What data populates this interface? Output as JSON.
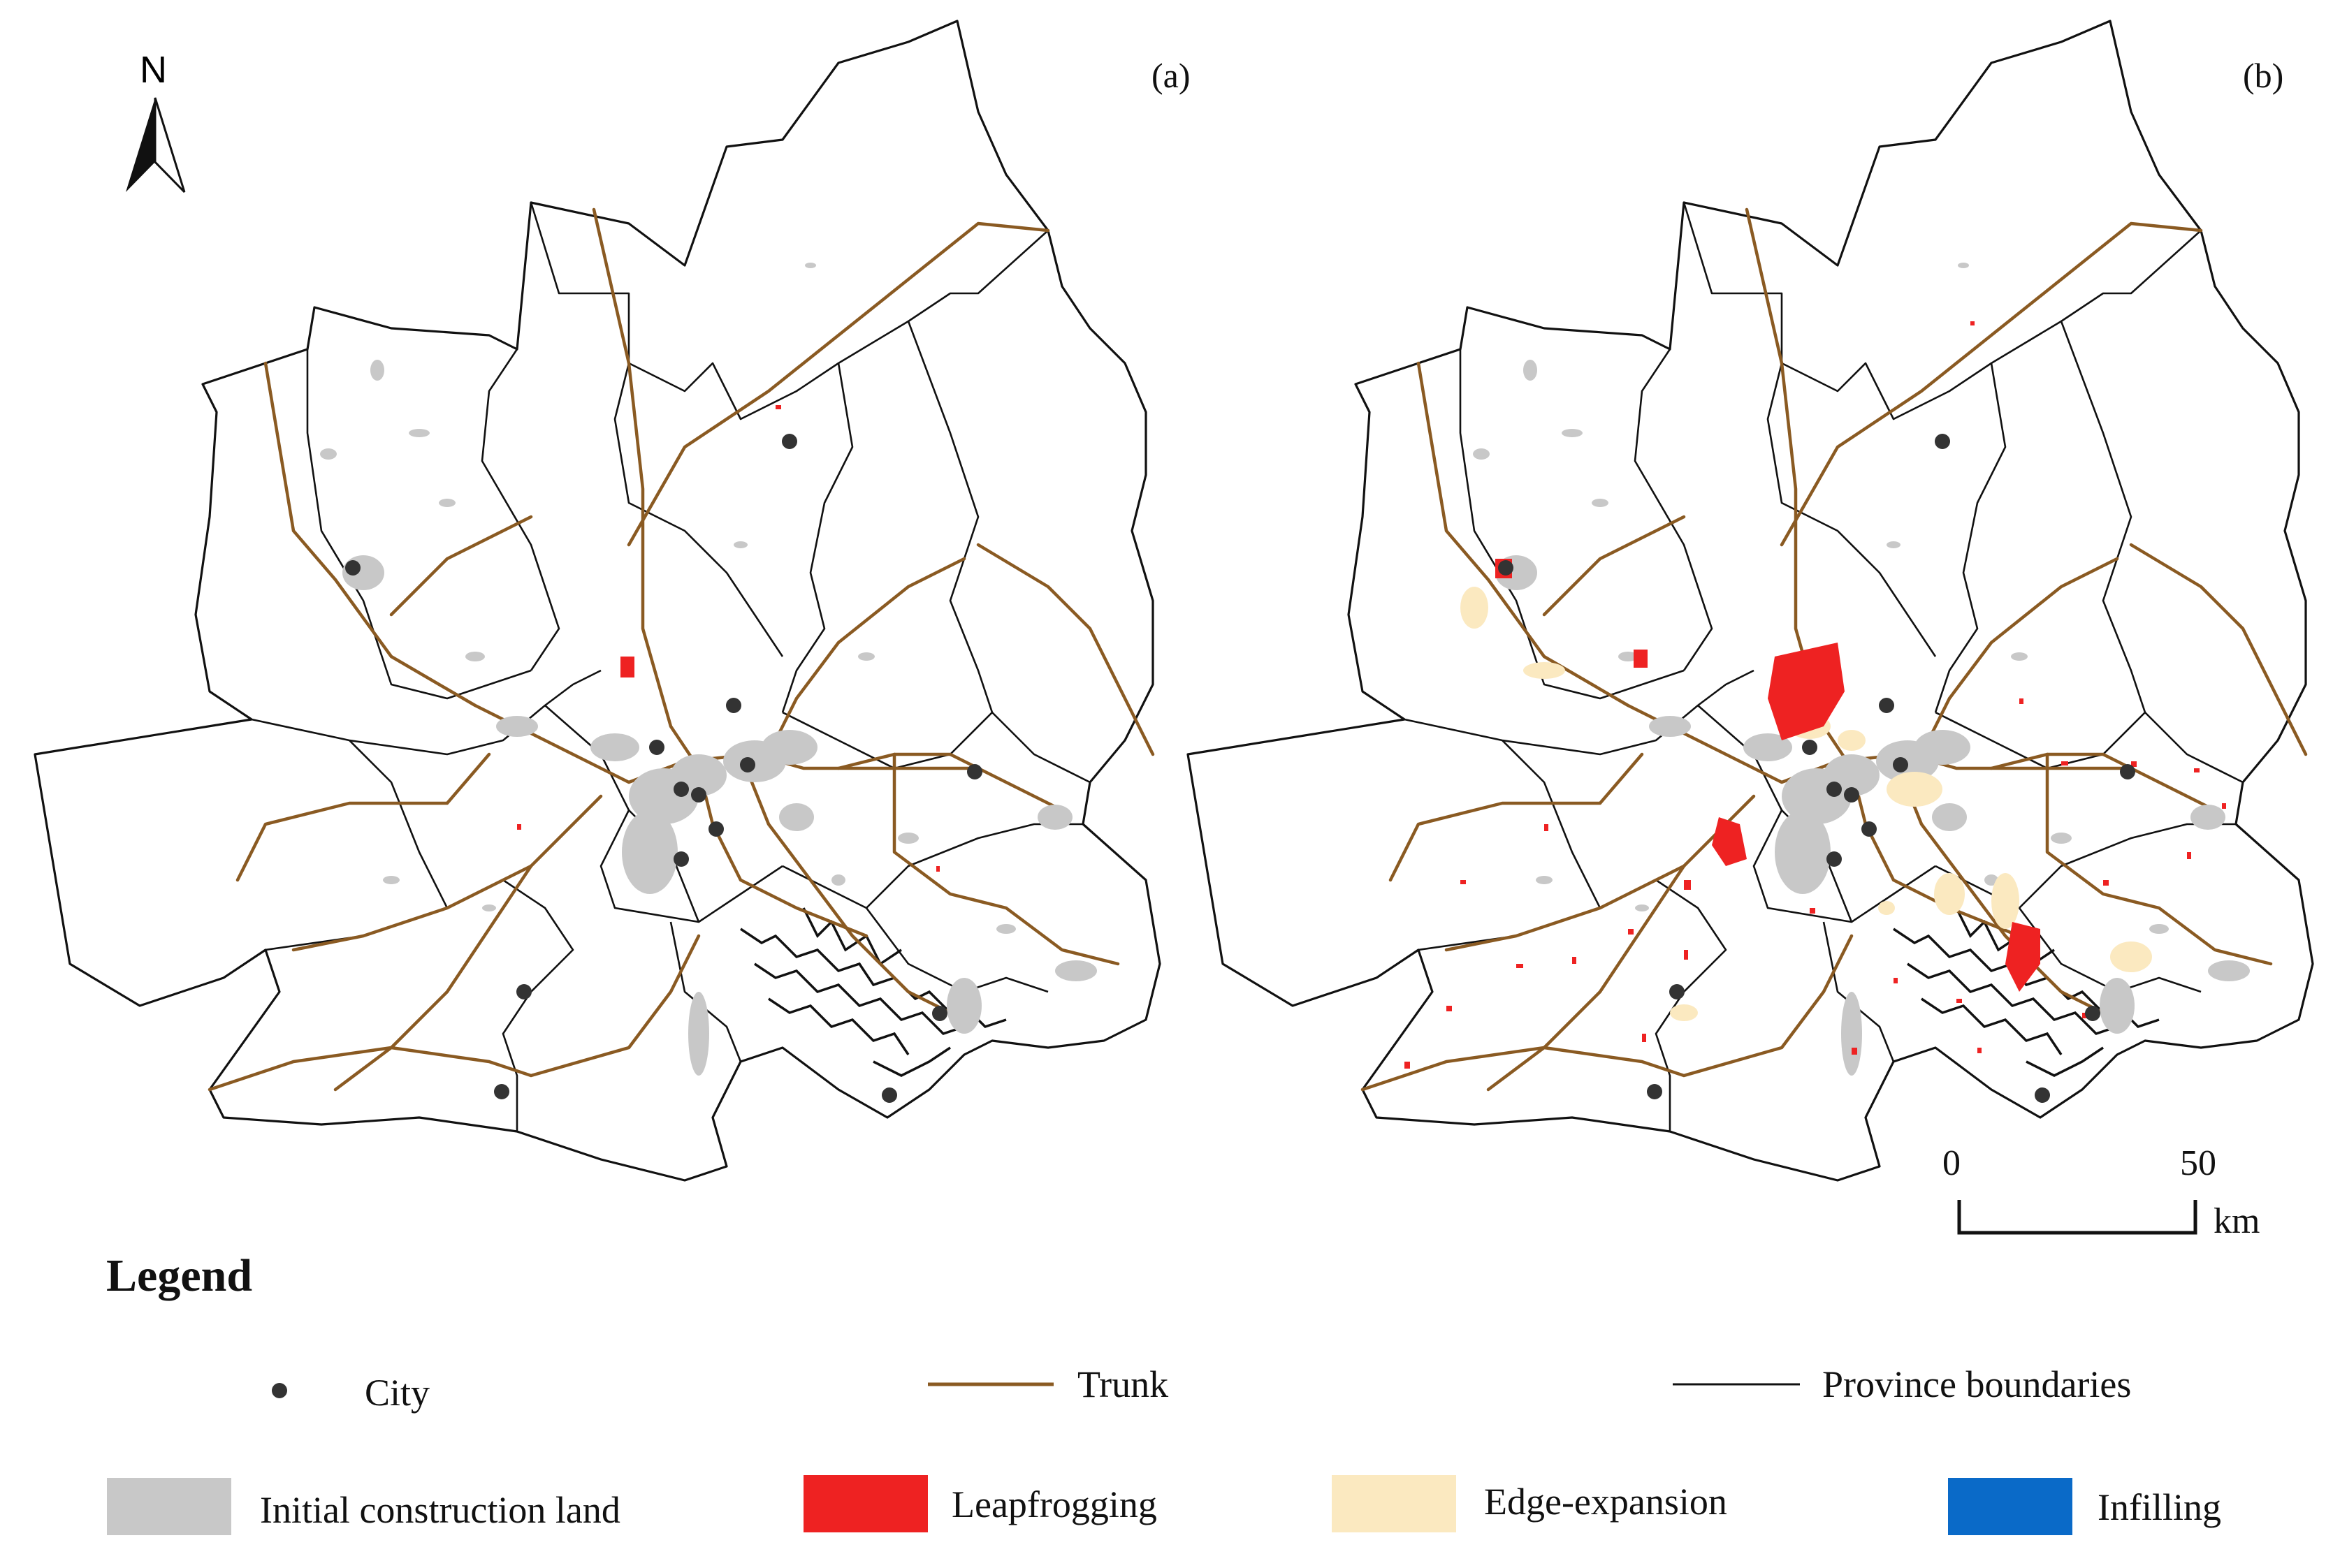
{
  "north_arrow": {
    "label": "N"
  },
  "panels": [
    {
      "label": "(a)"
    },
    {
      "label": "(b)"
    }
  ],
  "scale_bar": {
    "start_label": "0",
    "end_label": "50",
    "unit": "km"
  },
  "legend": {
    "title": "Legend",
    "items": [
      {
        "label": "City",
        "symbol": "dot",
        "color": "#333333"
      },
      {
        "label": "Trunk",
        "symbol": "line",
        "color": "#8a5a22"
      },
      {
        "label": "Province boundaries",
        "symbol": "line",
        "color": "#111111"
      },
      {
        "label": "Initial construction land",
        "symbol": "patch",
        "color": "#c8c8c8"
      },
      {
        "label": "Leapfrogging",
        "symbol": "patch",
        "color": "#ee2222"
      },
      {
        "label": "Edge-expansion",
        "symbol": "patch",
        "color": "#fbe9c0"
      },
      {
        "label": "Infilling",
        "symbol": "patch",
        "color": "#0a6ac8"
      }
    ]
  }
}
